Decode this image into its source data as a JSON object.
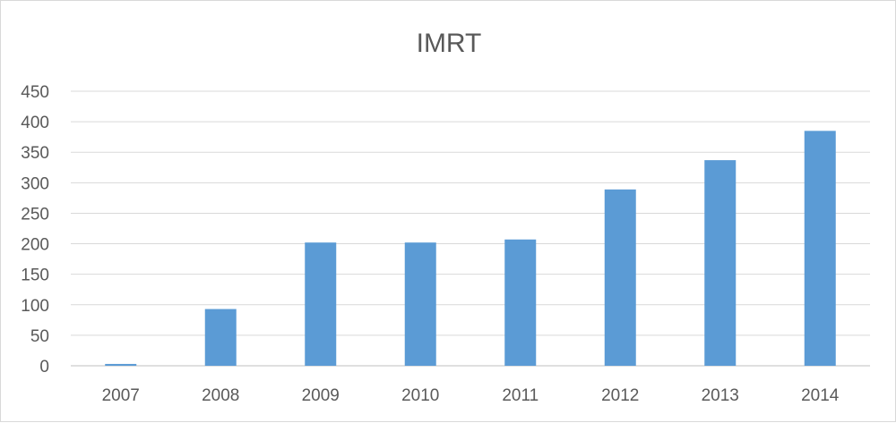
{
  "chart_data": {
    "type": "bar",
    "title": "IMRT",
    "xlabel": "",
    "ylabel": "",
    "categories": [
      "2007",
      "2008",
      "2009",
      "2010",
      "2011",
      "2012",
      "2013",
      "2014"
    ],
    "series": [
      {
        "values": [
          3,
          93,
          202,
          202,
          207,
          289,
          337,
          385
        ]
      }
    ],
    "ylim": [
      0,
      450
    ],
    "yticks": [
      0,
      50,
      100,
      150,
      200,
      250,
      300,
      350,
      400,
      450
    ],
    "grid": true,
    "legend": "none",
    "colors": {
      "bar": "#5b9bd5",
      "grid": "#d9d9d9",
      "text": "#595959"
    }
  }
}
